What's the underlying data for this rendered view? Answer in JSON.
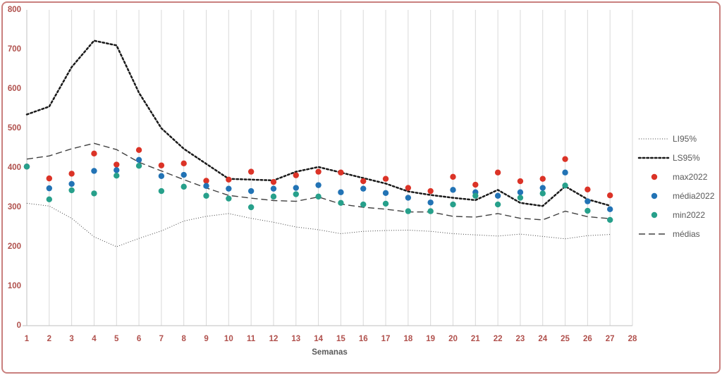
{
  "chart_data": {
    "type": "line+scatter",
    "title": "",
    "xlabel": "Semanas",
    "xlim": [
      1,
      28
    ],
    "ylim": [
      0,
      800
    ],
    "y_ticks": [
      0,
      100,
      200,
      300,
      400,
      500,
      600,
      700,
      800
    ],
    "x_ticks": [
      1,
      2,
      3,
      4,
      5,
      6,
      7,
      8,
      9,
      10,
      11,
      12,
      13,
      14,
      15,
      16,
      17,
      18,
      19,
      20,
      21,
      22,
      23,
      24,
      25,
      26,
      27,
      28
    ],
    "grid": "vertical",
    "x": [
      1,
      2,
      3,
      4,
      5,
      6,
      7,
      8,
      9,
      10,
      11,
      12,
      13,
      14,
      15,
      16,
      17,
      18,
      19,
      20,
      21,
      22,
      23,
      24,
      25,
      26,
      27
    ],
    "series": [
      {
        "name": "LI95%",
        "type": "line",
        "style": "dotted-fine",
        "color": "#404040",
        "values": [
          310,
          303,
          272,
          225,
          200,
          221,
          240,
          265,
          277,
          284,
          272,
          262,
          250,
          243,
          233,
          239,
          241,
          242,
          239,
          233,
          230,
          227,
          232,
          226,
          220,
          228,
          231
        ]
      },
      {
        "name": "LS95%",
        "type": "line",
        "style": "dotted-bold",
        "color": "#1a1a1a",
        "values": [
          535,
          555,
          655,
          722,
          710,
          590,
          500,
          448,
          410,
          372,
          370,
          368,
          390,
          402,
          388,
          374,
          360,
          340,
          331,
          324,
          318,
          344,
          311,
          303,
          353,
          320,
          304
        ]
      },
      {
        "name": "max2022",
        "type": "scatter",
        "style": "dot",
        "color": "#db3327",
        "values": [
          403,
          373,
          385,
          436,
          408,
          445,
          406,
          411,
          367,
          370,
          390,
          364,
          381,
          390,
          388,
          366,
          372,
          349,
          341,
          377,
          357,
          388,
          366,
          372,
          422,
          345,
          330
        ]
      },
      {
        "name": "média2022",
        "type": "scatter",
        "style": "dot",
        "color": "#2273b5",
        "values": [
          403,
          348,
          359,
          392,
          394,
          420,
          379,
          382,
          354,
          347,
          341,
          347,
          349,
          356,
          338,
          347,
          336,
          324,
          312,
          344,
          338,
          329,
          338,
          349,
          388,
          315,
          295
        ]
      },
      {
        "name": "min2022",
        "type": "scatter",
        "style": "dot",
        "color": "#27a08b",
        "values": [
          403,
          320,
          343,
          335,
          380,
          405,
          341,
          352,
          329,
          322,
          300,
          327,
          333,
          327,
          311,
          307,
          309,
          290,
          290,
          307,
          329,
          307,
          324,
          335,
          355,
          291,
          268
        ]
      },
      {
        "name": "médias",
        "type": "line",
        "style": "dashed",
        "color": "#404040",
        "values": [
          422,
          430,
          448,
          462,
          446,
          414,
          392,
          370,
          349,
          330,
          323,
          317,
          315,
          326,
          308,
          300,
          295,
          288,
          288,
          277,
          275,
          284,
          272,
          268,
          290,
          276,
          271
        ]
      }
    ],
    "legend_order": [
      "LI95%",
      "LS95%",
      "max2022",
      "média2022",
      "min2022",
      "médias"
    ],
    "legend_position": "right"
  },
  "style_tokens": {
    "tick_color": "#b0504c",
    "legend_text_color": "#595959",
    "grid_color": "#d9d9d9",
    "axis_color": "#bfbfbf",
    "frame_border_color": "#c9807e"
  }
}
